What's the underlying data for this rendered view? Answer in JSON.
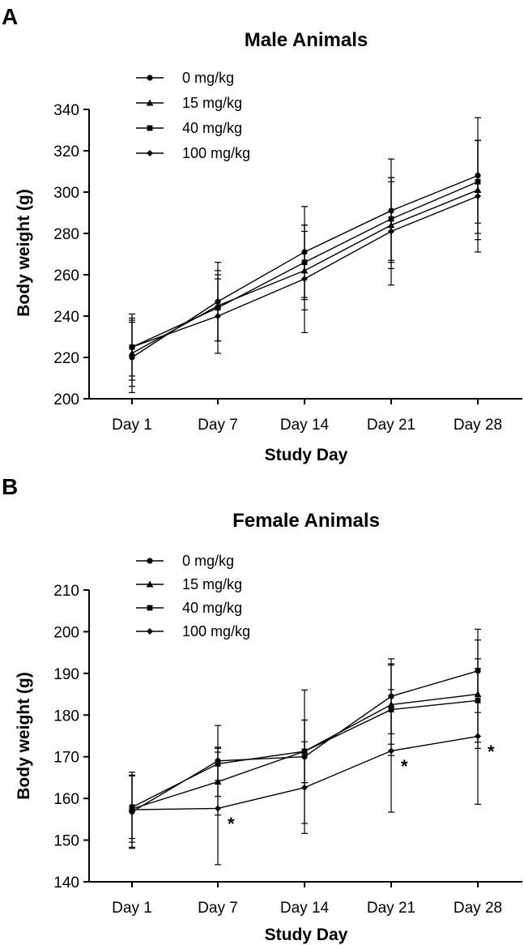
{
  "chart_data": [
    {
      "panel": "A",
      "type": "line",
      "title": "Male Animals",
      "xlabel": "Study Day",
      "ylabel": "Body weight (g)",
      "categories": [
        "Day 1",
        "Day 7",
        "Day 14",
        "Day 21",
        "Day 28"
      ],
      "ylim": [
        200,
        340
      ],
      "yticks": [
        200,
        220,
        240,
        260,
        280,
        300,
        320,
        340
      ],
      "legend_position": "top-left",
      "series": [
        {
          "name": "0 mg/kg",
          "marker": "circle",
          "values": [
            220,
            247,
            271,
            291,
            308
          ],
          "errors": [
            17,
            19,
            22,
            25,
            28
          ]
        },
        {
          "name": "15 mg/kg",
          "marker": "triangle",
          "values": [
            222,
            245,
            262,
            284,
            301
          ],
          "errors": [
            16,
            17,
            19,
            21,
            24
          ]
        },
        {
          "name": "40 mg/kg",
          "marker": "square",
          "values": [
            225,
            244,
            266,
            287,
            305
          ],
          "errors": [
            16,
            16,
            18,
            20,
            20
          ]
        },
        {
          "name": "100 mg/kg",
          "marker": "diamond",
          "values": [
            225,
            240,
            258,
            281,
            298
          ],
          "errors": [
            14,
            18,
            26,
            26,
            27
          ]
        }
      ],
      "significance": []
    },
    {
      "panel": "B",
      "type": "line",
      "title": "Female Animals",
      "xlabel": "Study Day",
      "ylabel": "Body weight (g)",
      "categories": [
        "Day 1",
        "Day 7",
        "Day 14",
        "Day 21",
        "Day 28"
      ],
      "ylim": [
        140,
        210
      ],
      "yticks": [
        140,
        150,
        160,
        170,
        180,
        190,
        200,
        210
      ],
      "legend_position": "top-left",
      "series": [
        {
          "name": "0 mg/kg",
          "marker": "circle",
          "values": [
            156.8,
            169,
            170,
            184.5,
            190.6
          ],
          "errors": [
            8.8,
            8.5,
            16,
            9,
            10
          ]
        },
        {
          "name": "15 mg/kg",
          "marker": "triangle",
          "values": [
            157.5,
            164,
            171.3,
            182.5,
            185
          ],
          "errors": [
            8,
            8,
            7.5,
            9.5,
            13
          ]
        },
        {
          "name": "40 mg/kg",
          "marker": "square",
          "values": [
            157.9,
            168.3,
            171.3,
            181.3,
            183.5
          ],
          "errors": [
            7.5,
            4,
            7.5,
            11,
            10
          ]
        },
        {
          "name": "100 mg/kg",
          "marker": "diamond",
          "values": [
            157.3,
            157.6,
            162.6,
            171.4,
            174.9
          ],
          "errors": [
            9,
            13.5,
            11,
            14.7,
            16.3
          ]
        }
      ],
      "significance": [
        {
          "category": "Day 7",
          "label": "*"
        },
        {
          "category": "Day 21",
          "label": "*"
        },
        {
          "category": "Day 28",
          "label": "*"
        }
      ]
    }
  ]
}
